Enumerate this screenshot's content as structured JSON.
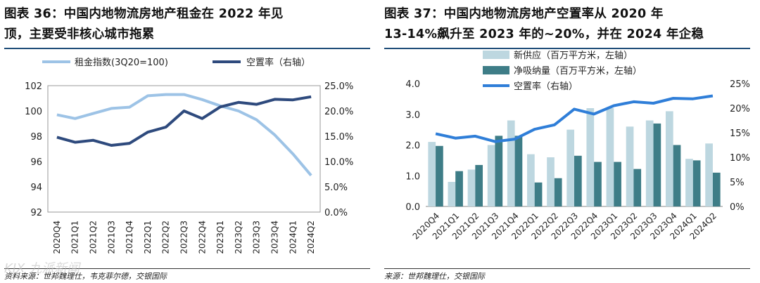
{
  "left": {
    "title_line1": "图表 36：中国内地物流房地产租金在 2022 年见",
    "title_line2": "顶，主要受非核心城市拖累",
    "source": "资料来源：世邦魏理仕，韦克菲尔德，交银国际",
    "watermark": "KIX 九派新闻"
  },
  "right": {
    "title_line1": "图表 37：中国内地物流房地产空置率从 2020 年",
    "title_line2": "13-14%飙升至 2023 年的~20%，并在 2024 年企稳",
    "source": "来源：世邦魏理仕，交银国际"
  },
  "chart_data": [
    {
      "type": "line",
      "categories": [
        "2020Q4",
        "2021Q1",
        "2021Q2",
        "2021Q3",
        "2021Q4",
        "2022Q1",
        "2022Q2",
        "2022Q3",
        "2022Q4",
        "2023Q1",
        "2023Q2",
        "2023Q3",
        "2023Q4",
        "2024Q1",
        "2024Q2"
      ],
      "series": [
        {
          "name": "租金指数(3Q20=100)",
          "axis": "left",
          "color": "#9dc3e6",
          "values": [
            99.7,
            99.4,
            99.8,
            100.2,
            100.3,
            101.2,
            101.3,
            101.3,
            100.9,
            100.4,
            100.0,
            99.3,
            98.1,
            96.6,
            94.9
          ]
        },
        {
          "name": "空置率（右轴）",
          "axis": "right",
          "color": "#2e4a7d",
          "values": [
            14.8,
            13.8,
            14.2,
            13.2,
            13.6,
            15.8,
            16.8,
            20.0,
            18.5,
            20.8,
            21.7,
            21.3,
            22.3,
            22.2,
            22.8
          ]
        }
      ],
      "y_left": {
        "min": 92,
        "max": 102,
        "ticks": [
          "92",
          "94",
          "96",
          "98",
          "100",
          "102"
        ]
      },
      "y_right": {
        "min": 0,
        "max": 25,
        "ticks": [
          "0.0%",
          "5.0%",
          "10.0%",
          "15.0%",
          "20.0%",
          "25.0%"
        ]
      },
      "legend": [
        "租金指数(3Q20=100)",
        "空置率（右轴）"
      ]
    },
    {
      "type": "bar",
      "categories": [
        "2020Q4",
        "2021Q1",
        "2021Q2",
        "2021Q3",
        "2021Q4",
        "2022Q1",
        "2022Q2",
        "2022Q3",
        "2022Q4",
        "2023Q1",
        "2023Q2",
        "2023Q3",
        "2023Q4",
        "2024Q1",
        "2024Q2"
      ],
      "series": [
        {
          "name": "新供应（百万平方米，左轴）",
          "kind": "bar",
          "axis": "left",
          "color": "#bdd7e0",
          "values": [
            2.1,
            0.8,
            1.2,
            2.0,
            2.8,
            1.7,
            1.6,
            2.5,
            3.2,
            3.2,
            2.6,
            2.8,
            3.1,
            1.55,
            2.05
          ]
        },
        {
          "name": "净吸纳量（百万平方米，左轴）",
          "kind": "bar",
          "axis": "left",
          "color": "#3e7d87",
          "values": [
            1.97,
            1.15,
            1.35,
            2.3,
            2.3,
            0.78,
            0.92,
            1.65,
            1.45,
            1.45,
            1.22,
            2.7,
            2.0,
            1.5,
            1.1
          ]
        },
        {
          "name": "空置率（右轴）",
          "kind": "line",
          "axis": "right",
          "color": "#2f7ed8",
          "values": [
            14.8,
            13.9,
            14.3,
            13.2,
            13.7,
            15.7,
            16.6,
            19.8,
            18.8,
            20.5,
            21.3,
            21.0,
            22.0,
            21.9,
            22.5
          ]
        }
      ],
      "y_left": {
        "min": 0,
        "max": 4,
        "ticks": [
          "0.0",
          "1.0",
          "2.0",
          "3.0",
          "4.0"
        ]
      },
      "y_right": {
        "min": 0,
        "max": 25,
        "ticks": [
          "0%",
          "5%",
          "10%",
          "15%",
          "20%",
          "25%"
        ]
      },
      "legend": [
        "新供应（百万平方米，左轴）",
        "净吸纳量（百万平方米，左轴）",
        "空置率（右轴）"
      ]
    }
  ]
}
